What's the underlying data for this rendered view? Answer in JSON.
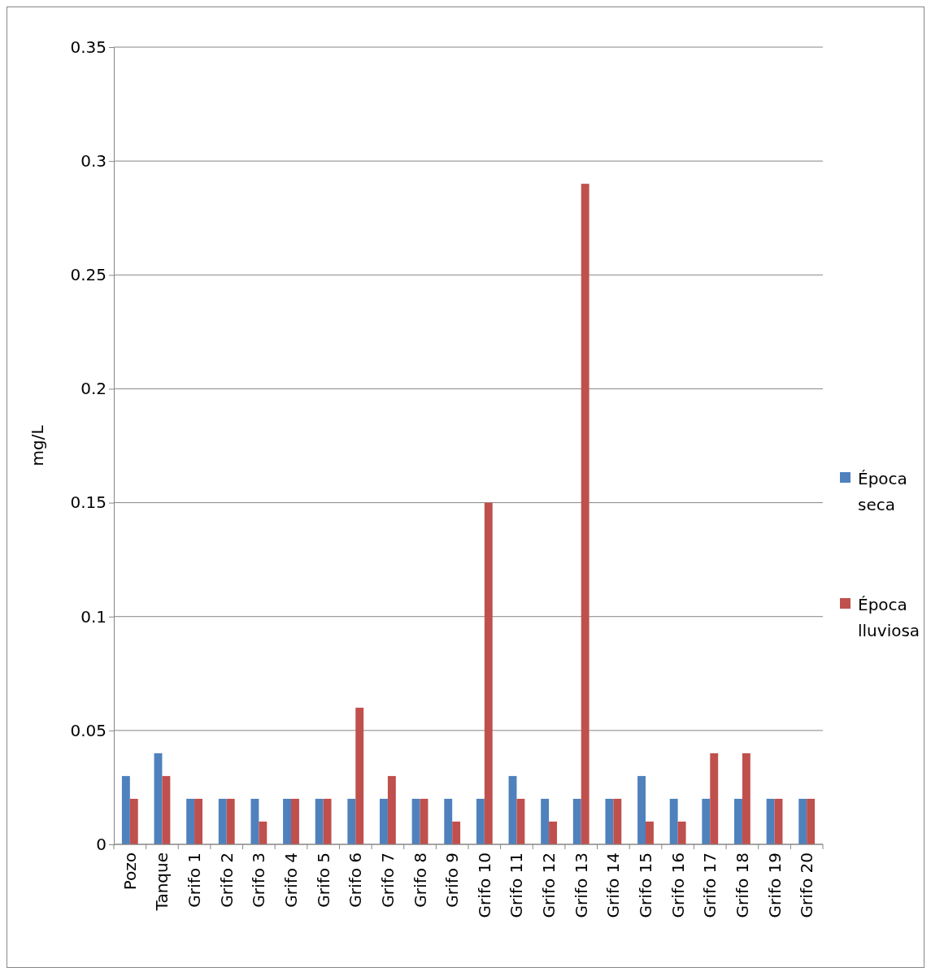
{
  "chart_data": {
    "type": "bar",
    "ylabel": "mg/L",
    "categories": [
      "Pozo",
      "Tanque",
      "Grifo 1",
      "Grifo 2",
      "Grifo 3",
      "Grifo 4",
      "Grifo 5",
      "Grifo 6",
      "Grifo 7",
      "Grifo 8",
      "Grifo 9",
      "Grifo 10",
      "Grifo 11",
      "Grifo 12",
      "Grifo 13",
      "Grifo 14",
      "Grifo 15",
      "Grifo 16",
      "Grifo 17",
      "Grifo 18",
      "Grifo 19",
      "Grifo 20"
    ],
    "series": [
      {
        "name": "Época seca",
        "color": "#4f81bd",
        "values": [
          0.03,
          0.04,
          0.02,
          0.02,
          0.02,
          0.02,
          0.02,
          0.02,
          0.02,
          0.02,
          0.02,
          0.02,
          0.03,
          0.02,
          0.02,
          0.02,
          0.03,
          0.02,
          0.02,
          0.02,
          0.02,
          0.02
        ]
      },
      {
        "name": "Época lluviosa",
        "color": "#c0504d",
        "values": [
          0.02,
          0.03,
          0.02,
          0.02,
          0.01,
          0.02,
          0.02,
          0.06,
          0.03,
          0.02,
          0.01,
          0.15,
          0.02,
          0.01,
          0.29,
          0.02,
          0.01,
          0.01,
          0.04,
          0.04,
          0.02,
          0.02
        ]
      }
    ],
    "ylim": [
      0,
      0.35
    ],
    "yticks": [
      0,
      0.05,
      0.1,
      0.15,
      0.2,
      0.25,
      0.3,
      0.35
    ],
    "grid": "y",
    "legend": "right"
  }
}
